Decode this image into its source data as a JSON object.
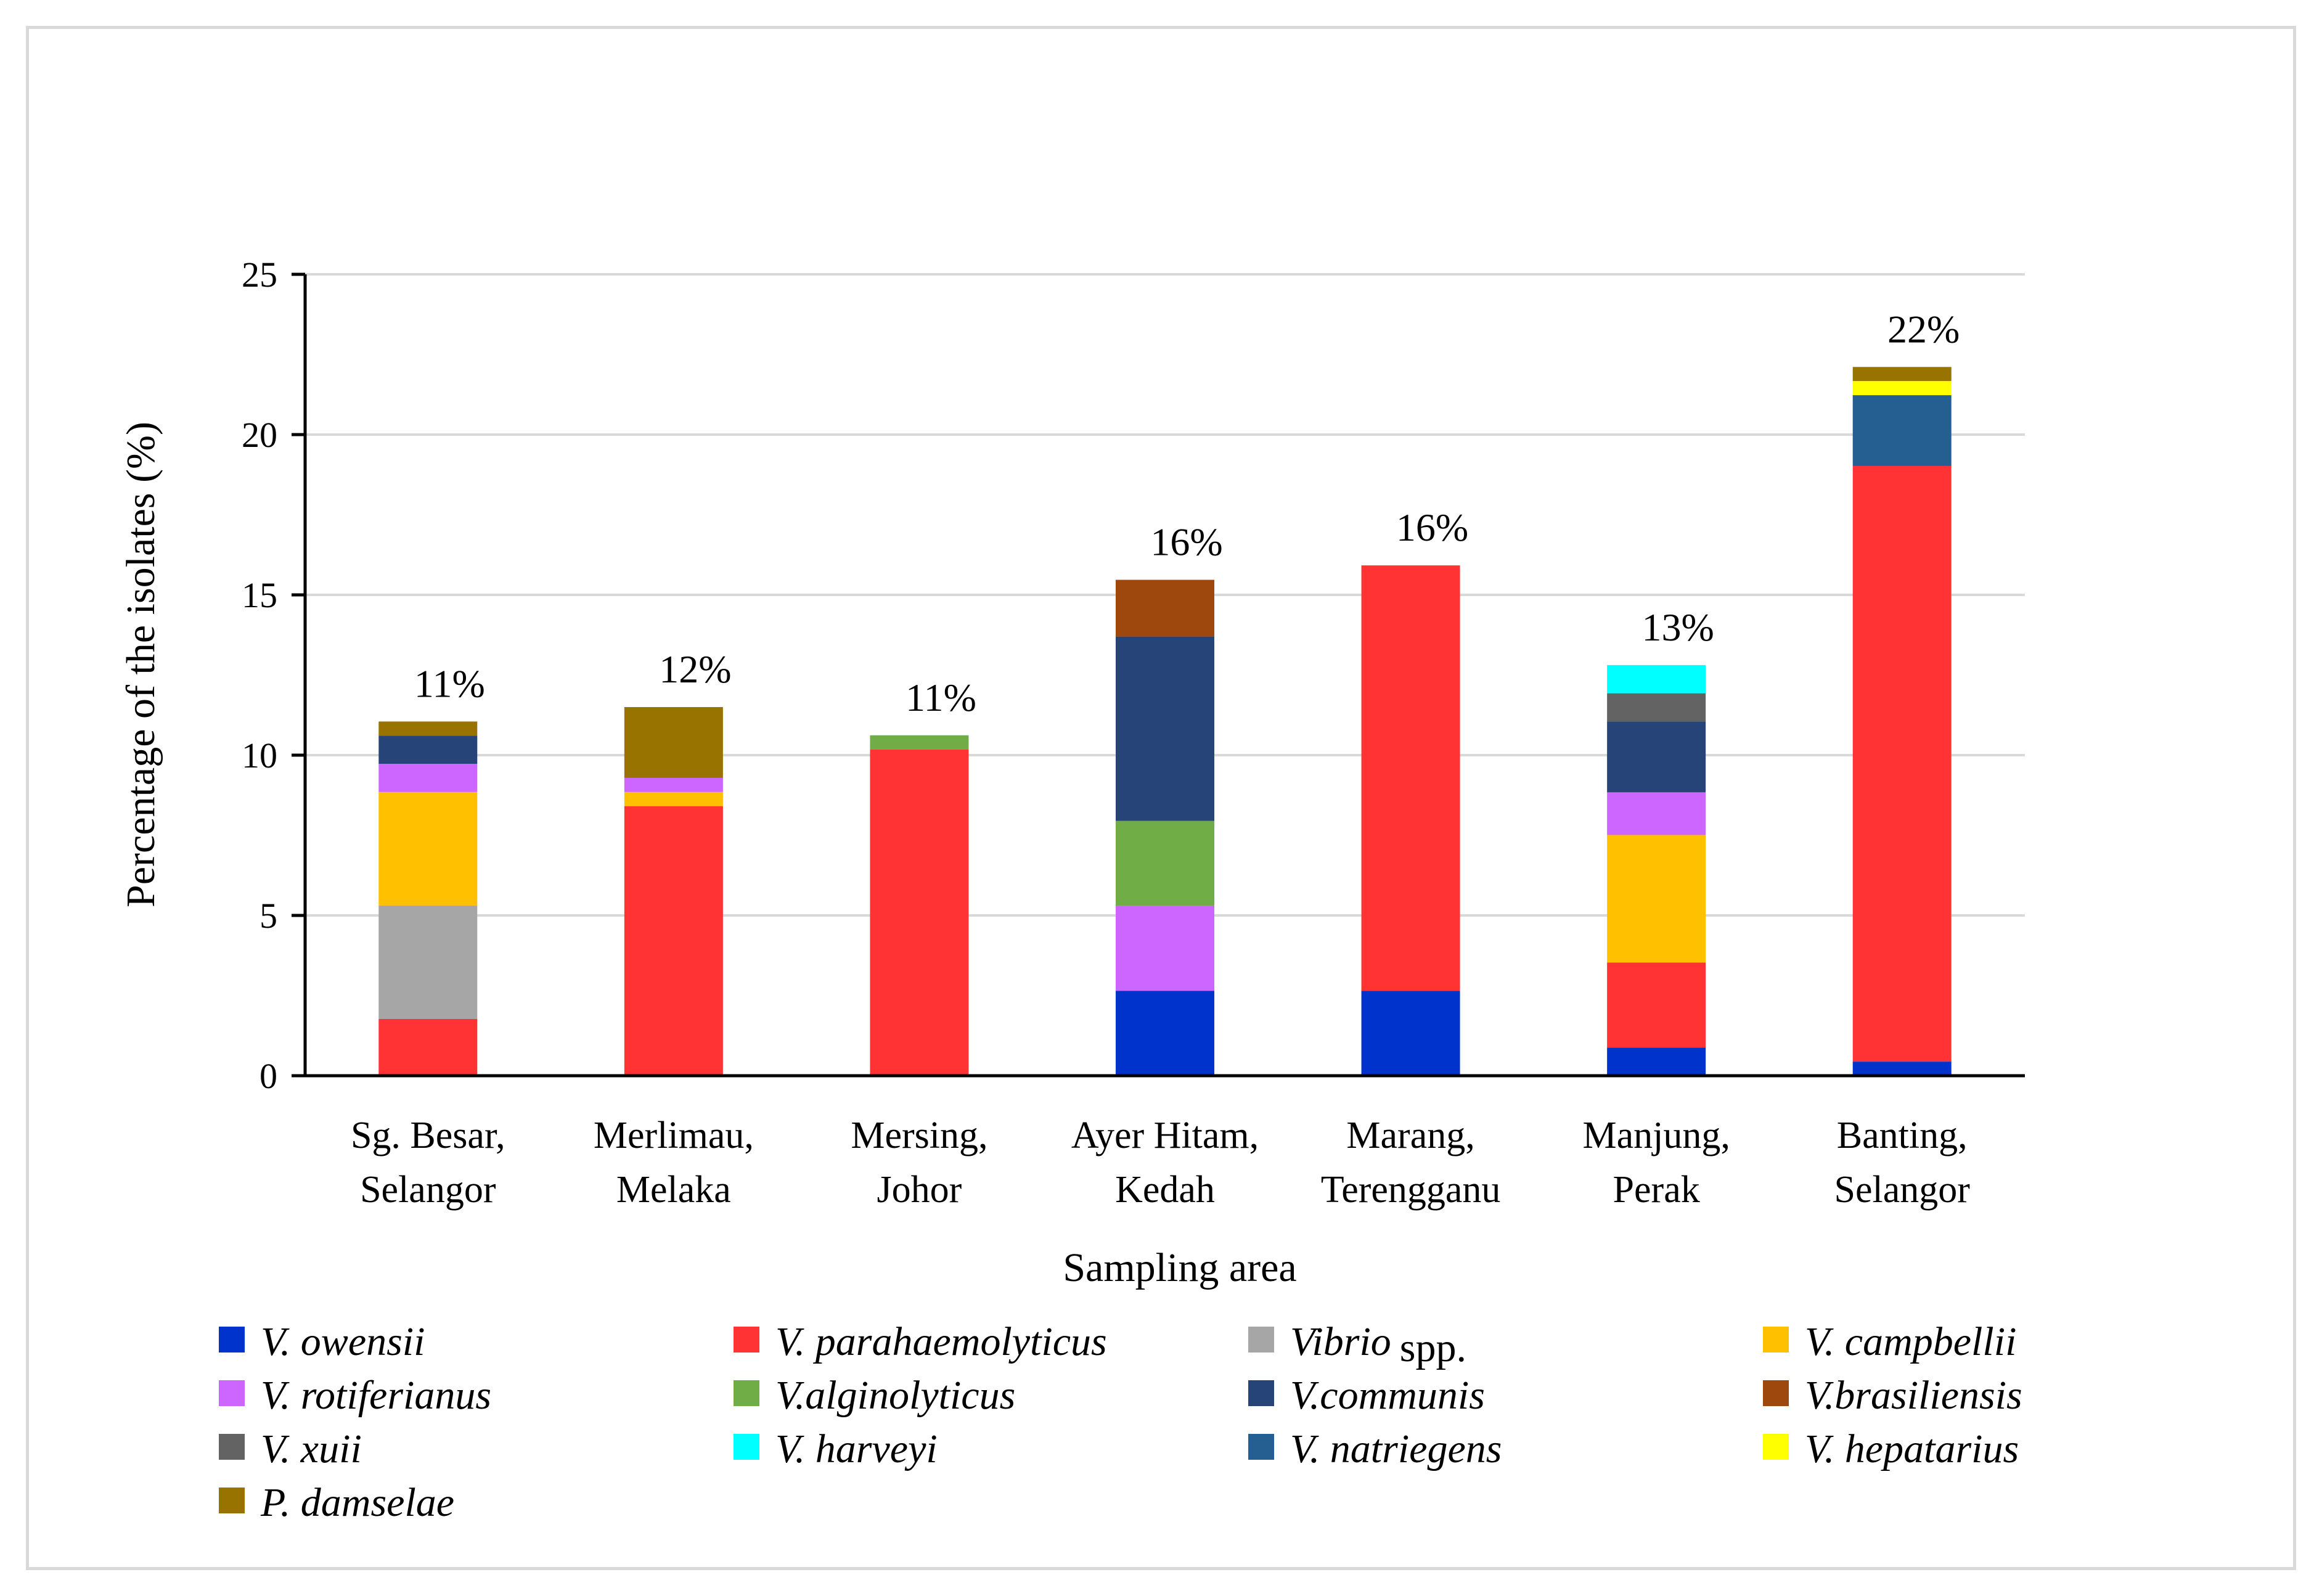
{
  "chart_data": {
    "type": "bar",
    "stacked": true,
    "xlabel": "Sampling area",
    "ylabel": "Percentage of the isolates (%)",
    "ylim": [
      0,
      25
    ],
    "yticks": [
      0,
      5,
      10,
      15,
      20,
      25
    ],
    "grid": true,
    "legend_position": "bottom",
    "categories": [
      [
        "Sg. Besar,",
        "Selangor"
      ],
      [
        "Merlimau,",
        "Melaka"
      ],
      [
        "Mersing,",
        "Johor"
      ],
      [
        "Ayer Hitam,",
        "Kedah"
      ],
      [
        "Marang,",
        "Terengganu"
      ],
      [
        "Manjung,",
        "Perak"
      ],
      [
        "Banting,",
        "Selangor"
      ]
    ],
    "totals": [
      "11%",
      "12%",
      "11%",
      "16%",
      "16%",
      "13%",
      "22%"
    ],
    "series": [
      {
        "name": "V. owensii",
        "color": "#0033cc",
        "values": [
          0,
          0,
          0,
          2.65,
          2.65,
          0.88,
          0.44
        ]
      },
      {
        "name": "V. parahaemolyticus",
        "color": "#ff3333",
        "values": [
          1.77,
          8.41,
          10.18,
          0,
          13.27,
          2.65,
          18.58
        ]
      },
      {
        "name": "Vibrio",
        "name_suffix": "spp.",
        "color": "#a6a6a6",
        "values": [
          3.54,
          0,
          0,
          0,
          0,
          0,
          0
        ]
      },
      {
        "name": "V. campbellii",
        "color": "#ffc000",
        "values": [
          3.54,
          0.44,
          0,
          0,
          0,
          3.98,
          0
        ]
      },
      {
        "name": "V. rotiferianus",
        "color": "#cc66ff",
        "values": [
          0.88,
          0.44,
          0,
          2.65,
          0,
          1.33,
          0
        ]
      },
      {
        "name": "V.alginolyticus",
        "color": "#70ad47",
        "values": [
          0,
          0,
          0.44,
          2.65,
          0,
          0,
          0
        ]
      },
      {
        "name": "V.communis",
        "color": "#264478",
        "values": [
          0.88,
          0,
          0,
          5.75,
          0,
          2.21,
          0
        ]
      },
      {
        "name": "V.brasiliensis",
        "color": "#9e480e",
        "values": [
          0,
          0,
          0,
          1.77,
          0,
          0,
          0
        ]
      },
      {
        "name": "V. xuii",
        "color": "#636363",
        "values": [
          0,
          0,
          0,
          0,
          0,
          0.88,
          0
        ]
      },
      {
        "name": "V. harveyi",
        "color": "#00ffff",
        "values": [
          0,
          0,
          0,
          0,
          0,
          0.88,
          0
        ]
      },
      {
        "name": "V. natriegens",
        "color": "#255e91",
        "values": [
          0,
          0,
          0,
          0,
          0,
          0,
          2.21
        ]
      },
      {
        "name": "V. hepatarius",
        "color": "#ffff00",
        "values": [
          0,
          0,
          0,
          0,
          0,
          0,
          0.44
        ]
      },
      {
        "name": "P. damselae",
        "color": "#997300",
        "values": [
          0.44,
          2.21,
          0,
          0,
          0,
          0,
          0.44
        ]
      }
    ]
  }
}
